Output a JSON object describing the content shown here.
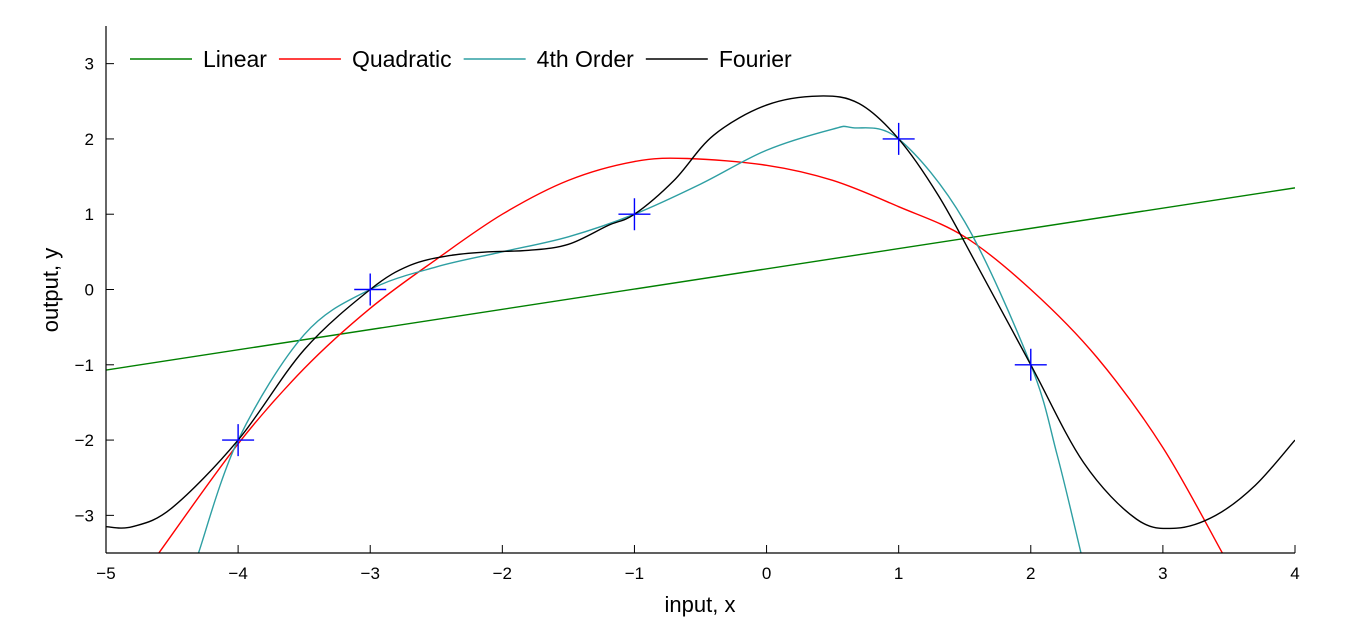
{
  "chart_data": {
    "type": "line",
    "xlabel": "input, x",
    "ylabel": "output, y",
    "xlim": [
      -5,
      4
    ],
    "ylim": [
      -3.5,
      3.5
    ],
    "xticks": [
      -5,
      -4,
      -3,
      -2,
      -1,
      0,
      1,
      2,
      3,
      4
    ],
    "yticks": [
      -3,
      -2,
      -1,
      0,
      1,
      2,
      3
    ],
    "xtick_labels": [
      "−5",
      "−4",
      "−3",
      "−2",
      "−1",
      "0",
      "1",
      "2",
      "3",
      "4"
    ],
    "ytick_labels": [
      "−3",
      "−2",
      "−1",
      "0",
      "1",
      "2",
      "3"
    ],
    "grid": false,
    "legend": "top-left, horizontal",
    "markers": {
      "style": "plus",
      "color": "#0000ff",
      "points": [
        [
          -4,
          -2
        ],
        [
          -3,
          0
        ],
        [
          -1,
          1
        ],
        [
          1,
          2
        ],
        [
          2,
          -1
        ]
      ]
    },
    "series": [
      {
        "name": "Linear",
        "color": "#008000",
        "x": [
          -5,
          4
        ],
        "y": [
          -1.07,
          1.35
        ]
      },
      {
        "name": "Quadratic",
        "color": "#ff0000",
        "x": [
          -4.6,
          -4.0,
          -3.5,
          -3.0,
          -2.5,
          -2.0,
          -1.5,
          -1.0,
          -0.6,
          0.0,
          0.5,
          1.0,
          1.5,
          2.0,
          2.5,
          3.0,
          3.45
        ],
        "y": [
          -3.5,
          -2.05,
          -1.05,
          -0.25,
          0.4,
          1.0,
          1.45,
          1.7,
          1.74,
          1.65,
          1.45,
          1.1,
          0.7,
          0.0,
          -0.9,
          -2.1,
          -3.5
        ]
      },
      {
        "name": "4th Order",
        "color": "#2e9fa3",
        "x": [
          -4.3,
          -4.0,
          -3.5,
          -3.0,
          -2.5,
          -2.0,
          -1.5,
          -1.0,
          -0.5,
          0.0,
          0.5,
          0.65,
          1.0,
          1.5,
          2.0,
          2.2,
          2.38
        ],
        "y": [
          -3.5,
          -2.0,
          -0.6,
          0.0,
          0.3,
          0.5,
          0.7,
          1.0,
          1.4,
          1.85,
          2.13,
          2.15,
          2.0,
          0.9,
          -1.0,
          -2.2,
          -3.5
        ]
      },
      {
        "name": "Fourier",
        "color": "#000000",
        "x": [
          -5.0,
          -4.8,
          -4.5,
          -4.0,
          -3.5,
          -3.0,
          -2.7,
          -2.4,
          -2.1,
          -1.8,
          -1.5,
          -1.2,
          -1.0,
          -0.7,
          -0.4,
          0.0,
          0.4,
          0.7,
          1.0,
          1.3,
          1.6,
          2.0,
          2.4,
          2.8,
          3.1,
          3.4,
          3.7,
          4.0
        ],
        "y": [
          -3.15,
          -3.15,
          -2.9,
          -2.0,
          -0.8,
          0.0,
          0.32,
          0.45,
          0.5,
          0.52,
          0.6,
          0.85,
          1.0,
          1.45,
          2.05,
          2.45,
          2.57,
          2.47,
          2.0,
          1.25,
          0.3,
          -1.0,
          -2.3,
          -3.05,
          -3.17,
          -3.0,
          -2.6,
          -2.0
        ]
      }
    ]
  }
}
